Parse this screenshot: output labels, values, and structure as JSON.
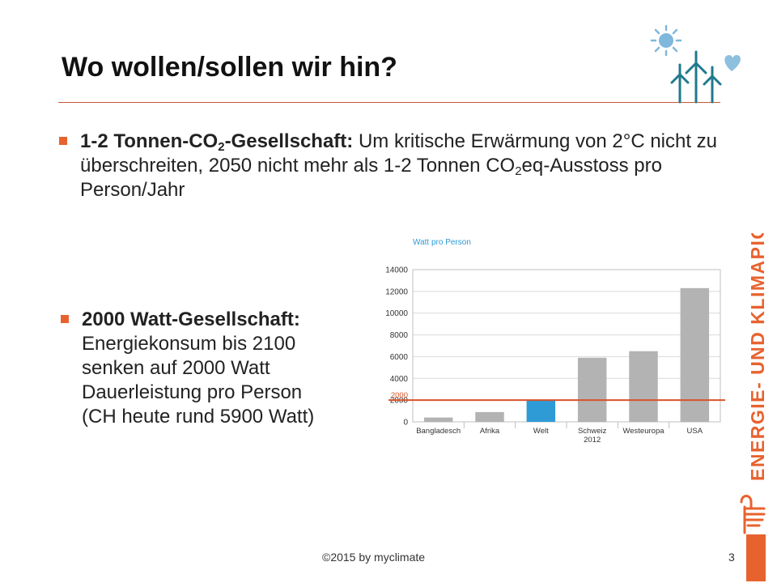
{
  "slide": {
    "title": "Wo wollen/sollen wir hin?",
    "bullet1": {
      "bold_prefix": "1-2 Tonnen-CO",
      "bold_sub": "2",
      "bold_suffix": "-Gesellschaft:",
      "text_a": " Um kritische Erwärmung von 2°C  nicht zu überschreiten, 2050 nicht mehr als 1-2 Tonnen CO",
      "text_sub": "2",
      "text_b": "eq-Ausstoss pro Person/Jahr"
    },
    "bullet2": {
      "bold": "2000 Watt-Gesellschaft:",
      "line1": "Energiekonsum bis 2100",
      "line2": "senken auf 2000 Watt",
      "line3": "Dauerleistung pro Person",
      "line4": "(CH heute rund 5900 Watt)"
    },
    "footer_left": "©2015 by myclimate",
    "footer_right": "3",
    "side_brand": "ENERGIE- UND KLIMAPIONIERE"
  },
  "colors": {
    "accent_orange": "#e8622e",
    "bar_gray": "#b3b3b3",
    "bar_highlight": "#2e9bd6",
    "reference_line": "#d9532a",
    "logo_teal": "#1f7a8c",
    "logo_sun": "#7fb8dc",
    "logo_heart": "#8cc0de"
  },
  "icons": [
    "sun-icon",
    "wind-turbine-icon",
    "heart-icon",
    "hand-icon"
  ],
  "chart_data": {
    "type": "bar",
    "title": "Watt pro Person",
    "categories": [
      "Bangladesch",
      "Afrika",
      "Welt",
      "Schweiz 2012",
      "Westeuropa",
      "USA"
    ],
    "values": [
      400,
      900,
      2000,
      5900,
      6500,
      12300
    ],
    "highlight_category": "Welt",
    "reference_line": {
      "value": 2000,
      "label": "2000"
    },
    "yticks": [
      0,
      2000,
      4000,
      6000,
      8000,
      10000,
      12000,
      14000
    ],
    "ylim": [
      0,
      14000
    ],
    "grid": true
  }
}
